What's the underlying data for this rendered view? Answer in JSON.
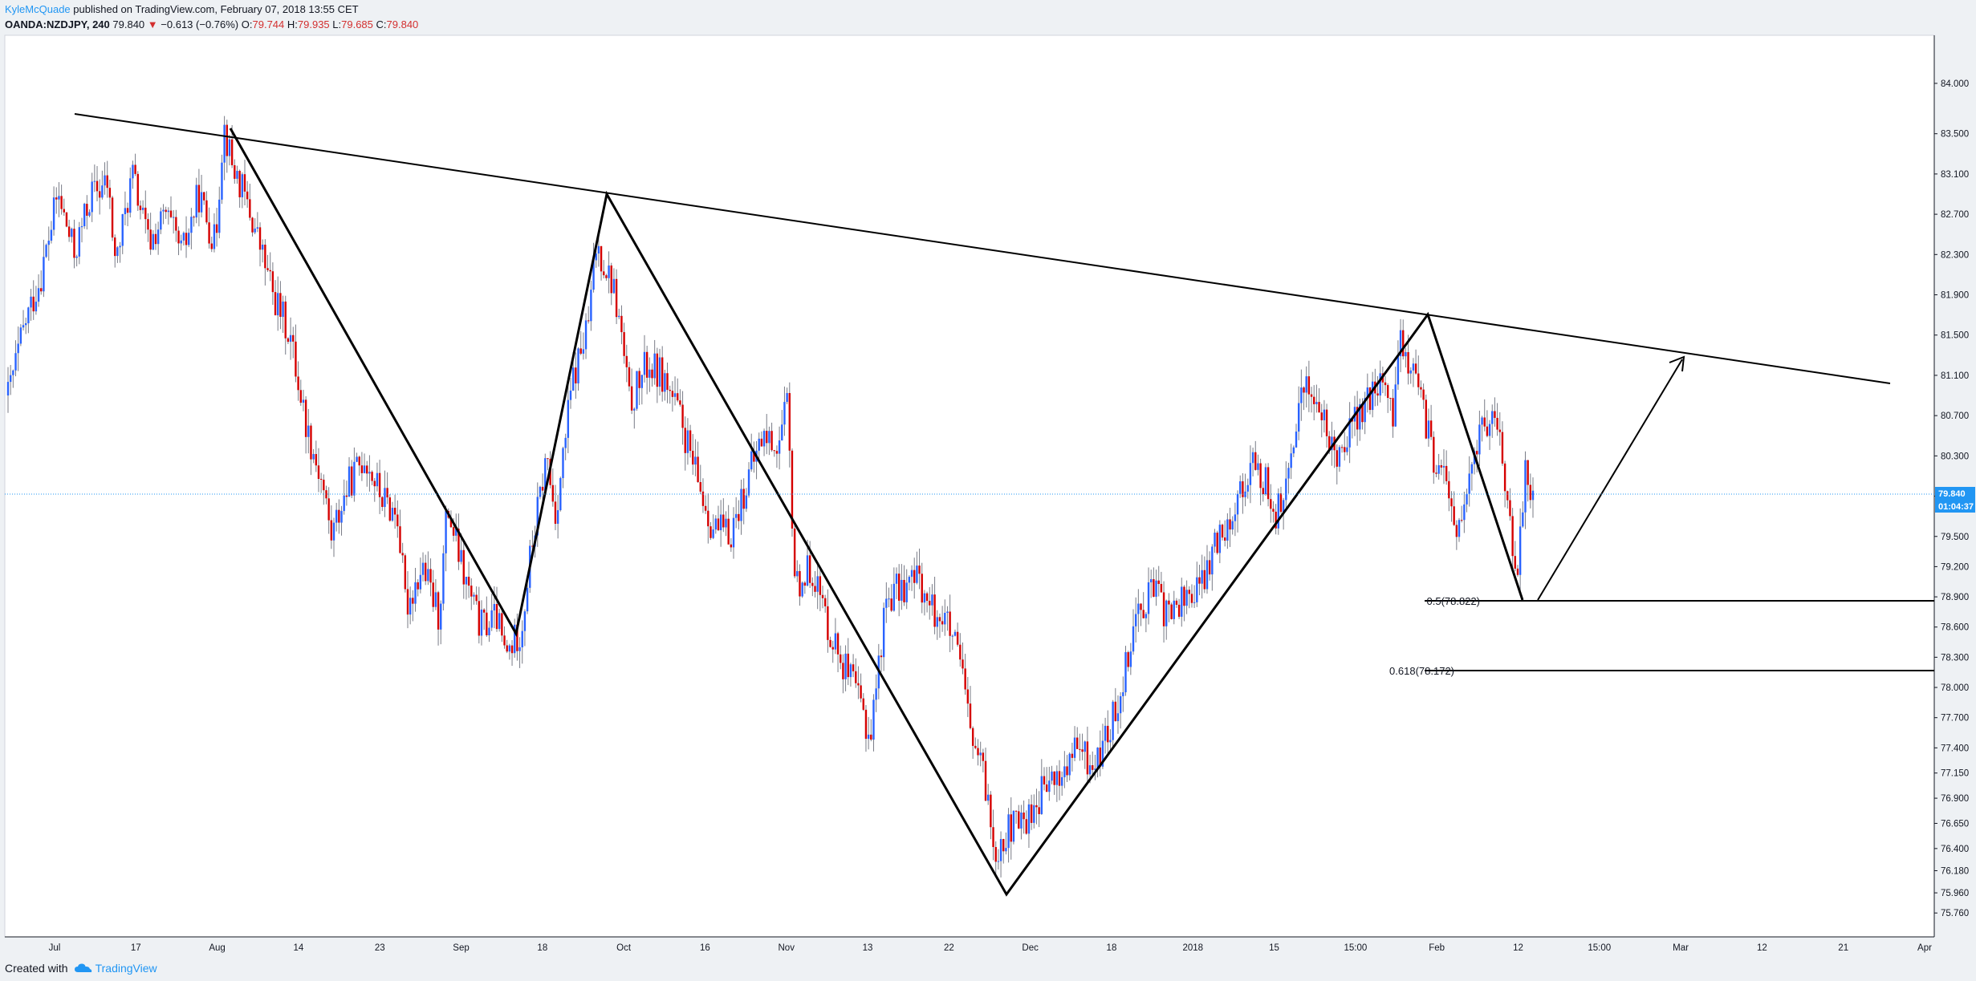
{
  "header": {
    "author": "KyleMcQuade",
    "published_text": " published on TradingView.com, February 07, 2018 13:55 CET",
    "symbol": "OANDA:NZDJPY, 240",
    "last": "79.840",
    "change": "−0.613 (−0.76%)",
    "open_label": "O:",
    "open": "79.744",
    "high_label": "H:",
    "high": "79.935",
    "low_label": "L:",
    "low": "79.685",
    "close_label": "C:",
    "close": "79.840"
  },
  "footer": {
    "created_with": "Created with",
    "brand": "TradingView"
  },
  "colors": {
    "up": "#2962ff",
    "down": "#d50000",
    "wick": "#787b86",
    "drawing": "#000000",
    "price_line": "#2196f3",
    "background": "#ffffff"
  },
  "price_tags": {
    "last_price": "79.840",
    "countdown": "01:04:37"
  },
  "chart_data": {
    "type": "candlestick",
    "symbol": "OANDA:NZDJPY",
    "interval": "240",
    "ylim": [
      75.65,
      84.35
    ],
    "y_ticks": [
      "84.000",
      "83.500",
      "83.100",
      "82.700",
      "82.300",
      "81.900",
      "81.500",
      "81.100",
      "80.700",
      "80.300",
      "79.900",
      "79.500",
      "79.200",
      "78.900",
      "78.600",
      "78.300",
      "78.000",
      "77.700",
      "77.400",
      "77.150",
      "76.900",
      "76.650",
      "76.400",
      "76.180",
      "75.960",
      "75.760"
    ],
    "x_ticks": [
      "Jul",
      "17",
      "Aug",
      "14",
      "23",
      "Sep",
      "18",
      "Oct",
      "16",
      "Nov",
      "13",
      "22",
      "Dec",
      "18",
      "2018",
      "15",
      "15:00",
      "Feb",
      "12",
      "15:00",
      "Mar",
      "12",
      "21",
      "Apr"
    ],
    "price_path": [
      [
        0,
        80.9
      ],
      [
        2,
        81.6
      ],
      [
        4,
        82.1
      ],
      [
        6,
        82.9
      ],
      [
        8,
        82.3
      ],
      [
        10,
        82.9
      ],
      [
        12,
        83.0
      ],
      [
        13,
        82.2
      ],
      [
        15,
        83.1
      ],
      [
        17,
        82.4
      ],
      [
        19,
        82.7
      ],
      [
        21,
        82.3
      ],
      [
        23,
        82.9
      ],
      [
        25,
        82.4
      ],
      [
        26,
        83.6
      ],
      [
        27,
        83.2
      ],
      [
        28,
        83.0
      ],
      [
        30,
        82.5
      ],
      [
        32,
        81.9
      ],
      [
        34,
        81.5
      ],
      [
        36,
        80.6
      ],
      [
        38,
        80.0
      ],
      [
        39,
        79.5
      ],
      [
        41,
        80.0
      ],
      [
        43,
        80.3
      ],
      [
        45,
        79.9
      ],
      [
        47,
        79.7
      ],
      [
        48,
        78.8
      ],
      [
        50,
        79.2
      ],
      [
        52,
        78.7
      ],
      [
        53,
        79.8
      ],
      [
        55,
        79.1
      ],
      [
        57,
        78.6
      ],
      [
        59,
        78.7
      ],
      [
        60,
        78.3
      ],
      [
        62,
        78.6
      ],
      [
        63,
        79.3
      ],
      [
        65,
        80.3
      ],
      [
        66,
        79.7
      ],
      [
        67,
        80.3
      ],
      [
        68,
        81.0
      ],
      [
        70,
        81.6
      ],
      [
        71,
        82.4
      ],
      [
        73,
        82.0
      ],
      [
        74,
        81.5
      ],
      [
        75,
        80.8
      ],
      [
        77,
        81.2
      ],
      [
        79,
        81.1
      ],
      [
        81,
        80.7
      ],
      [
        83,
        80.1
      ],
      [
        85,
        79.6
      ],
      [
        87,
        79.5
      ],
      [
        89,
        80.0
      ],
      [
        91,
        80.5
      ],
      [
        93,
        80.4
      ],
      [
        94,
        80.8
      ],
      [
        95,
        79.0
      ],
      [
        97,
        79.2
      ],
      [
        99,
        78.6
      ],
      [
        101,
        78.2
      ],
      [
        103,
        77.8
      ],
      [
        104,
        77.5
      ],
      [
        106,
        78.9
      ],
      [
        108,
        79.0
      ],
      [
        110,
        79.1
      ],
      [
        111,
        78.8
      ],
      [
        113,
        78.7
      ],
      [
        115,
        78.2
      ],
      [
        116,
        77.6
      ],
      [
        118,
        77.0
      ],
      [
        119,
        76.4
      ],
      [
        121,
        76.6
      ],
      [
        123,
        76.7
      ],
      [
        125,
        77.0
      ],
      [
        127,
        77.1
      ],
      [
        129,
        77.4
      ],
      [
        131,
        77.2
      ],
      [
        133,
        77.6
      ],
      [
        134,
        77.9
      ],
      [
        136,
        78.7
      ],
      [
        138,
        79.0
      ],
      [
        140,
        78.7
      ],
      [
        142,
        78.9
      ],
      [
        144,
        79.0
      ],
      [
        146,
        79.5
      ],
      [
        148,
        79.8
      ],
      [
        150,
        80.2
      ],
      [
        152,
        80.0
      ],
      [
        153,
        79.7
      ],
      [
        155,
        80.2
      ],
      [
        156,
        81.1
      ],
      [
        158,
        80.8
      ],
      [
        160,
        80.3
      ],
      [
        162,
        80.6
      ],
      [
        164,
        80.8
      ],
      [
        166,
        81.1
      ],
      [
        167,
        80.6
      ],
      [
        168,
        81.5
      ],
      [
        170,
        81.0
      ],
      [
        172,
        80.3
      ],
      [
        174,
        79.9
      ],
      [
        175,
        79.5
      ],
      [
        177,
        80.3
      ],
      [
        178,
        80.7
      ],
      [
        180,
        80.5
      ],
      [
        181,
        79.8
      ],
      [
        182,
        78.9
      ],
      [
        183,
        80.2
      ],
      [
        184,
        79.9
      ]
    ],
    "drawings": {
      "trendline": [
        [
          83.55,
          "Jul start"
        ],
        [
          80.9,
          "Apr start"
        ]
      ],
      "fib_levels": [
        {
          "label": "0.5(78.822)",
          "value": 78.822
        },
        {
          "label": "0.618(78.172)",
          "value": 78.172
        }
      ]
    }
  }
}
